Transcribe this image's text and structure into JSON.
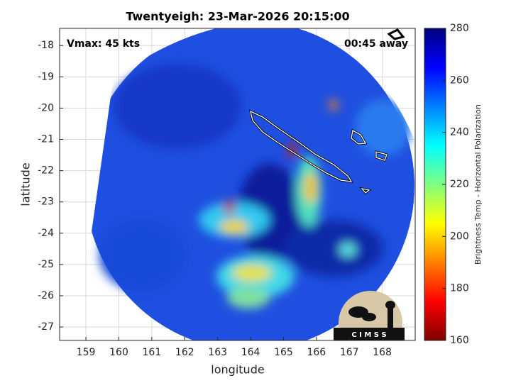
{
  "title": "Twentyeigh: 23-Mar-2026 20:15:00",
  "annotations": {
    "vmax": "Vmax: 45 kts",
    "time_away": "00:45 away"
  },
  "xlabel": "longitude",
  "ylabel": "latitude",
  "xlim": [
    158.2,
    169
  ],
  "xticks": [
    159,
    160,
    161,
    162,
    163,
    164,
    165,
    166,
    167,
    168
  ],
  "ylim": [
    -27.43,
    -17.45
  ],
  "yticks": [
    -18,
    -19,
    -20,
    -21,
    -22,
    -23,
    -24,
    -25,
    -26,
    -27
  ],
  "grid": true,
  "colorbar": {
    "label": "Brightness Temp - Horizontal Polarization",
    "lim": [
      160,
      280
    ],
    "ticks": [
      160,
      180,
      200,
      220,
      240,
      260,
      280
    ],
    "colormap": [
      "#7f0000",
      "#ff0000",
      "#ff8000",
      "#ffff00",
      "#80ff80",
      "#00ffff",
      "#0080ff",
      "#0000ff",
      "#00007f"
    ]
  },
  "logo_text": "C I M S S"
}
